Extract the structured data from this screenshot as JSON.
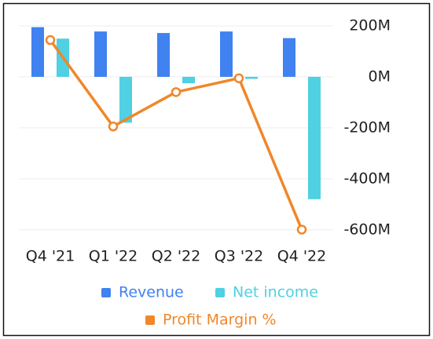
{
  "chart_data": {
    "type": "bar",
    "categories": [
      "Q4 '21",
      "Q1 '22",
      "Q2 '22",
      "Q3 '22",
      "Q4 '22"
    ],
    "series": [
      {
        "name": "Revenue",
        "color": "#3f82f0",
        "values": [
          195,
          178,
          172,
          178,
          152
        ]
      },
      {
        "name": "Net income",
        "color": "#4fd0e3",
        "values": [
          150,
          -180,
          -25,
          -8,
          -480
        ]
      },
      {
        "name": "Profit Margin %",
        "color": "#f0872a",
        "type": "line",
        "axis": "y2",
        "values": [
          77,
          -104,
          -32,
          -3,
          -320
        ]
      }
    ],
    "ylim": [
      -650,
      240
    ],
    "yticks": [
      {
        "value": 200,
        "label": "200M"
      },
      {
        "value": 0,
        "label": "0M"
      },
      {
        "value": -200,
        "label": "-200M"
      },
      {
        "value": -400,
        "label": "-400M"
      },
      {
        "value": -600,
        "label": "-600M"
      }
    ],
    "y2lim": [
      -347,
      128
    ],
    "grid": true
  }
}
